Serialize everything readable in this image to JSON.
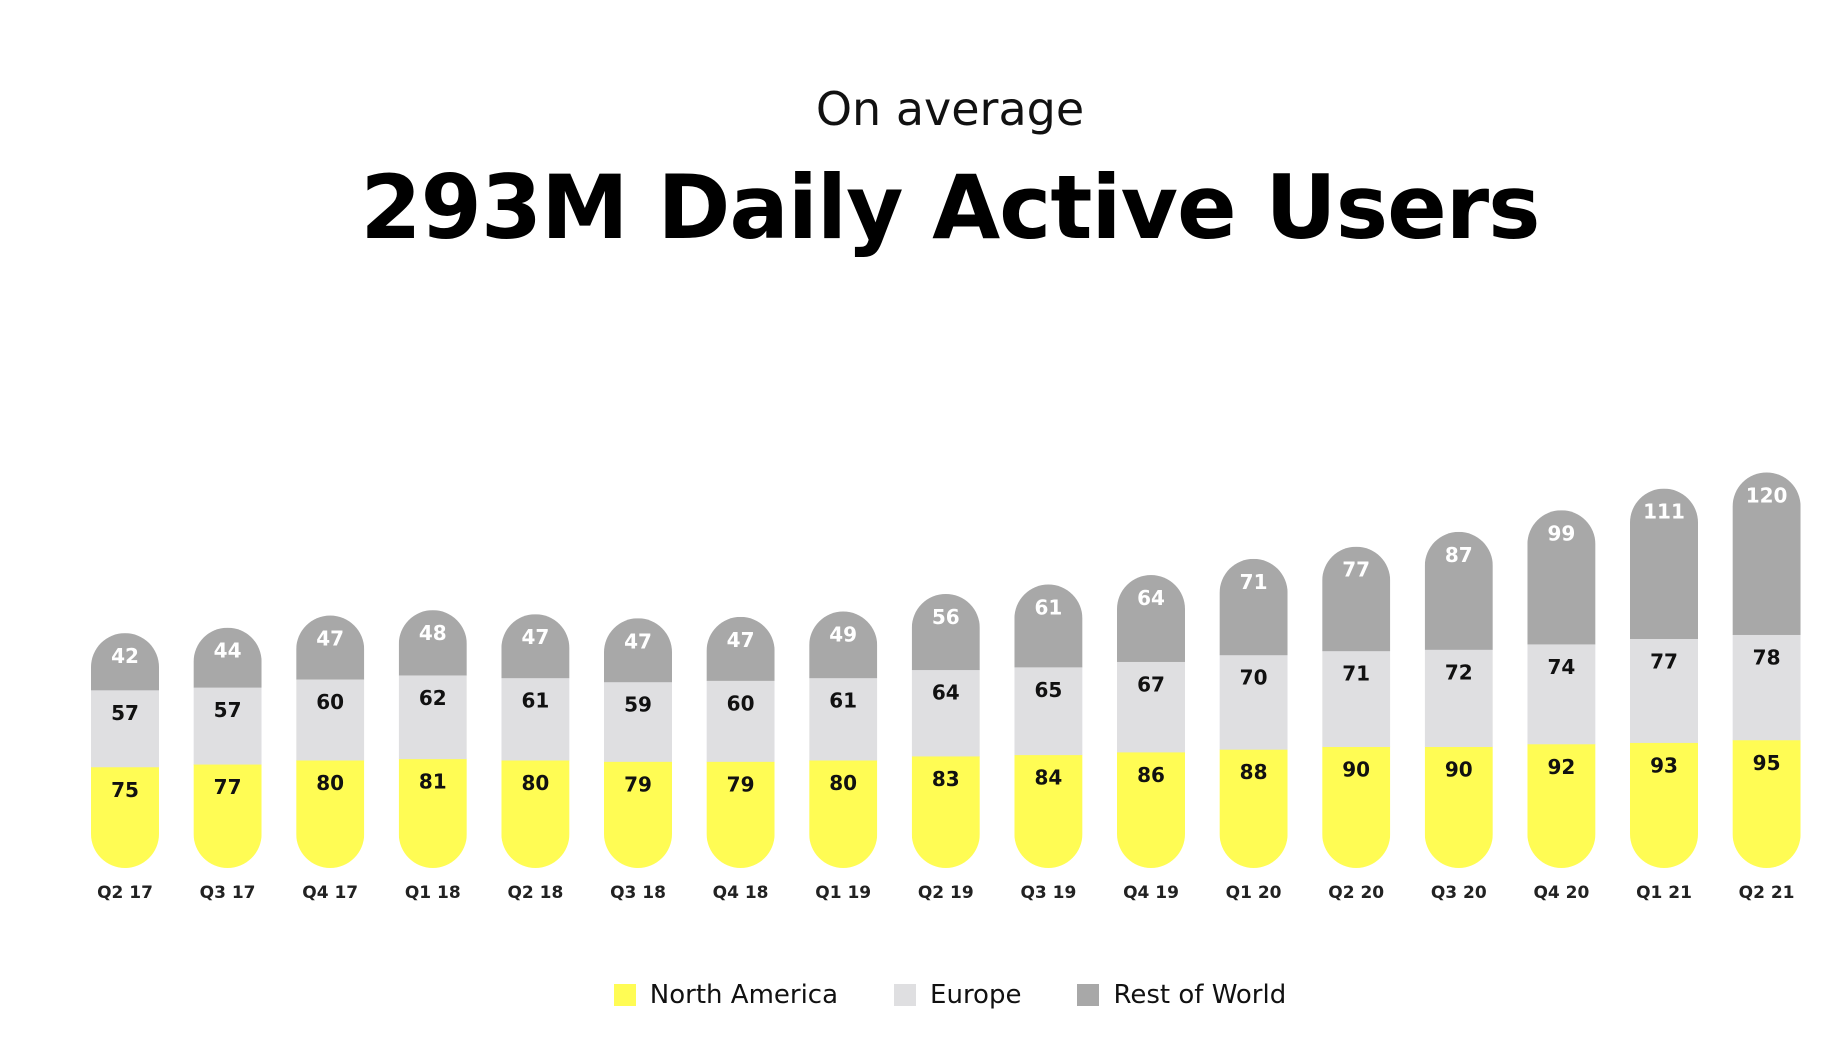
{
  "header": {
    "subtitle": "On average",
    "title": "293M Daily Active Users"
  },
  "chart_data": {
    "type": "bar",
    "stacked": true,
    "title": "293M Daily Active Users",
    "subtitle": "On average",
    "categories": [
      "Q2 17",
      "Q3 17",
      "Q4 17",
      "Q1 18",
      "Q2 18",
      "Q3 18",
      "Q4 18",
      "Q1 19",
      "Q2 19",
      "Q3 19",
      "Q4 19",
      "Q1 20",
      "Q2 20",
      "Q3 20",
      "Q4 20",
      "Q1 21",
      "Q2 21"
    ],
    "series": [
      {
        "name": "North America",
        "color": "#FFFC54",
        "label_color": "#111111",
        "values": [
          75,
          77,
          80,
          81,
          80,
          79,
          79,
          80,
          83,
          84,
          86,
          88,
          90,
          90,
          92,
          93,
          95
        ]
      },
      {
        "name": "Europe",
        "color": "#DFDFE1",
        "label_color": "#111111",
        "values": [
          57,
          57,
          60,
          62,
          61,
          59,
          60,
          61,
          64,
          65,
          67,
          70,
          71,
          72,
          74,
          77,
          78
        ]
      },
      {
        "name": "Rest of World",
        "color": "#A8A8A8",
        "label_color": "#FFFFFF",
        "values": [
          42,
          44,
          47,
          48,
          47,
          47,
          47,
          49,
          56,
          61,
          64,
          71,
          77,
          87,
          99,
          111,
          120
        ]
      }
    ],
    "legend_position": "bottom-center",
    "ylabel": "",
    "xlabel": ""
  }
}
